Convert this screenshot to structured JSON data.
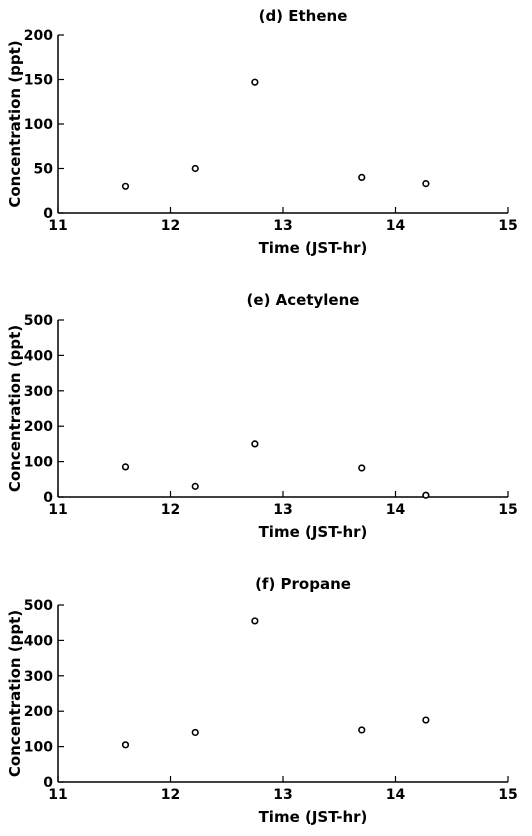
{
  "chart_data": [
    {
      "type": "scatter",
      "title": "(d)  Ethene",
      "xlabel": "Time    (JST-hr)",
      "ylabel": "Concentration    (ppt)",
      "xlim": [
        11,
        15
      ],
      "ylim": [
        0,
        200
      ],
      "xticks": [
        11,
        12,
        13,
        14,
        15
      ],
      "yticks": [
        0,
        50,
        100,
        150,
        200
      ],
      "marker": "open-circle",
      "points": [
        {
          "x": 11.6,
          "y": 30
        },
        {
          "x": 12.22,
          "y": 50
        },
        {
          "x": 12.75,
          "y": 147
        },
        {
          "x": 13.7,
          "y": 40
        },
        {
          "x": 14.27,
          "y": 33
        }
      ]
    },
    {
      "type": "scatter",
      "title": "(e)  Acetylene",
      "xlabel": "Time    (JST-hr)",
      "ylabel": "Concentration    (ppt)",
      "xlim": [
        11,
        15
      ],
      "ylim": [
        0,
        500
      ],
      "xticks": [
        11,
        12,
        13,
        14,
        15
      ],
      "yticks": [
        0,
        100,
        200,
        300,
        400,
        500
      ],
      "marker": "open-circle",
      "points": [
        {
          "x": 11.6,
          "y": 85
        },
        {
          "x": 12.22,
          "y": 30
        },
        {
          "x": 12.75,
          "y": 150
        },
        {
          "x": 13.7,
          "y": 82
        },
        {
          "x": 14.27,
          "y": 5
        }
      ]
    },
    {
      "type": "scatter",
      "title": "(f)  Propane",
      "xlabel": "Time    (JST-hr)",
      "ylabel": "Concentration    (ppt)",
      "xlim": [
        11,
        15
      ],
      "ylim": [
        0,
        500
      ],
      "xticks": [
        11,
        12,
        13,
        14,
        15
      ],
      "yticks": [
        0,
        100,
        200,
        300,
        400,
        500
      ],
      "marker": "open-circle",
      "points": [
        {
          "x": 11.6,
          "y": 105
        },
        {
          "x": 12.22,
          "y": 140
        },
        {
          "x": 12.75,
          "y": 455
        },
        {
          "x": 13.7,
          "y": 147
        },
        {
          "x": 14.27,
          "y": 175
        }
      ]
    }
  ]
}
